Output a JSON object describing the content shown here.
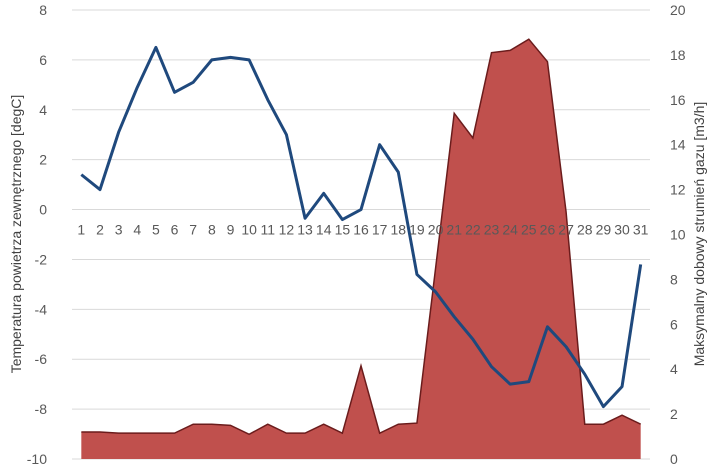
{
  "chart_data": {
    "type": "line",
    "combo": "area (right axis) + line (left axis)",
    "x": [
      1,
      2,
      3,
      4,
      5,
      6,
      7,
      8,
      9,
      10,
      11,
      12,
      13,
      14,
      15,
      16,
      17,
      18,
      19,
      20,
      21,
      22,
      23,
      24,
      25,
      26,
      27,
      28,
      29,
      30,
      31
    ],
    "ylabel": "Temperatura powietrza zewnętrznego [degC]",
    "y2label": "Maksymalny dobowy strumień gazu [m3/h]",
    "ylim": [
      -10,
      8
    ],
    "y2lim": [
      0,
      20
    ],
    "yticks": [
      -10,
      -8,
      -6,
      -4,
      -2,
      0,
      2,
      4,
      6,
      8
    ],
    "y2ticks": [
      0,
      2,
      4,
      6,
      8,
      10,
      12,
      14,
      16,
      18,
      20
    ],
    "grid": true,
    "series": [
      {
        "type": "area",
        "axis": "right",
        "color": "#c0504d",
        "edge_color": "#6b1c1c",
        "values": [
          1.2,
          1.2,
          1.15,
          1.15,
          1.15,
          1.15,
          1.55,
          1.55,
          1.5,
          1.1,
          1.55,
          1.15,
          1.15,
          1.55,
          1.15,
          4.15,
          1.15,
          1.55,
          1.6,
          8.5,
          15.4,
          14.3,
          18.1,
          18.2,
          18.7,
          17.7,
          11.0,
          1.55,
          1.55,
          1.95,
          1.55
        ]
      },
      {
        "type": "line",
        "axis": "left",
        "color": "#1f497d",
        "values": [
          1.4,
          0.8,
          3.1,
          4.9,
          6.5,
          4.7,
          5.1,
          6.0,
          6.1,
          6.0,
          4.4,
          3.0,
          -0.35,
          0.65,
          -0.4,
          0.0,
          2.6,
          1.5,
          -2.6,
          -3.3,
          -4.3,
          -5.2,
          -6.3,
          -7.0,
          -6.9,
          -4.7,
          -5.5,
          -6.6,
          -7.9,
          -7.1,
          -2.2
        ]
      }
    ]
  }
}
